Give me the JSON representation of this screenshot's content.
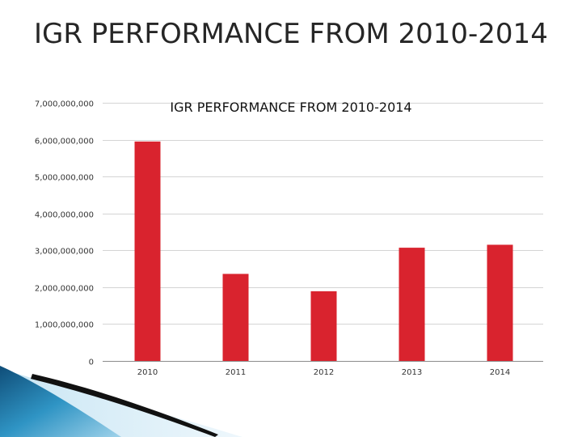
{
  "slide": {
    "title": "IGR PERFORMANCE FROM 2010-2014"
  },
  "colors": {
    "bar": "#d9232e",
    "grid": "#d4d4d4",
    "axis": "#8c8c8c",
    "text": "#333333",
    "title": "#262626"
  },
  "chart_data": {
    "type": "bar",
    "title": "IGR PERFORMANCE FROM 2010-2014",
    "categories": [
      "2010",
      "2011",
      "2012",
      "2013",
      "2014"
    ],
    "values": [
      5950000000,
      2360000000,
      1890000000,
      3070000000,
      3150000000
    ],
    "ylim": [
      0,
      7000000000
    ],
    "ytick_values": [
      0,
      1000000000,
      2000000000,
      3000000000,
      4000000000,
      5000000000,
      6000000000,
      7000000000
    ],
    "ytick_labels": [
      "0",
      "1,000,000,000",
      "2,000,000,000",
      "3,000,000,000",
      "4,000,000,000",
      "5,000,000,000",
      "6,000,000,000",
      "7,000,000,000"
    ],
    "xlabel": "",
    "ylabel": "",
    "grid": true,
    "legend": "none"
  }
}
